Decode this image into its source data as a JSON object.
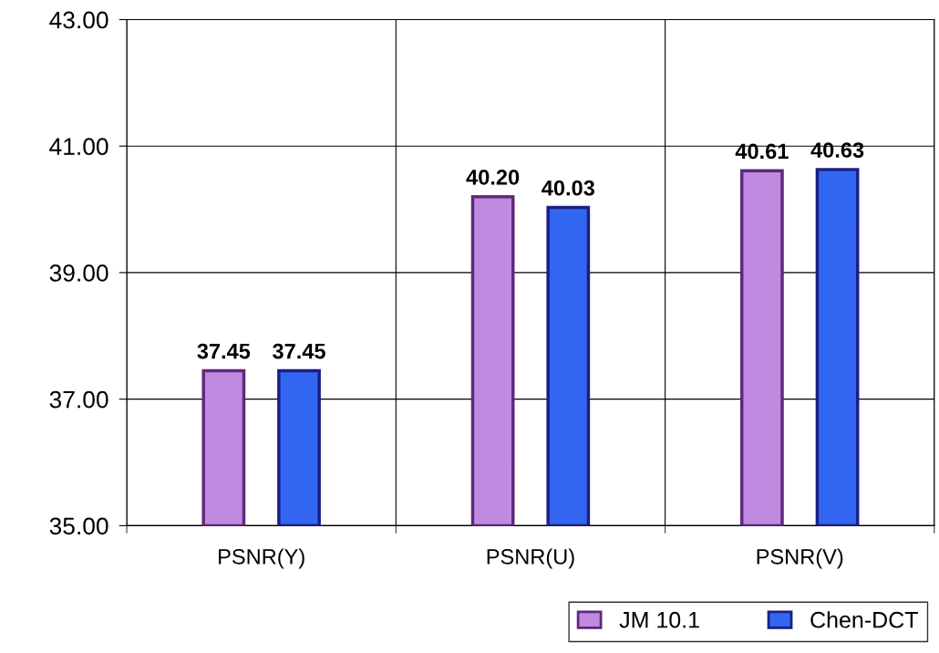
{
  "chart_data": {
    "type": "bar",
    "categories": [
      "PSNR(Y)",
      "PSNR(U)",
      "PSNR(V)"
    ],
    "series": [
      {
        "name": "JM 10.1",
        "color": "#c08ae0",
        "values": [
          37.45,
          40.2,
          40.61
        ],
        "value_labels": [
          "37.45",
          "40.20",
          "40.61"
        ]
      },
      {
        "name": "Chen-DCT",
        "color": "#3366f0",
        "values": [
          37.45,
          40.03,
          40.63
        ],
        "value_labels": [
          "37.45",
          "40.03",
          "40.63"
        ]
      }
    ],
    "ylim": [
      35,
      43
    ],
    "yticks": [
      {
        "value": 35,
        "label": "35.00"
      },
      {
        "value": 37,
        "label": "37.00"
      },
      {
        "value": 39,
        "label": "39.00"
      },
      {
        "value": 41,
        "label": "41.00"
      },
      {
        "value": 43,
        "label": "43.00"
      }
    ],
    "grid": true,
    "legend": "bottom right"
  }
}
